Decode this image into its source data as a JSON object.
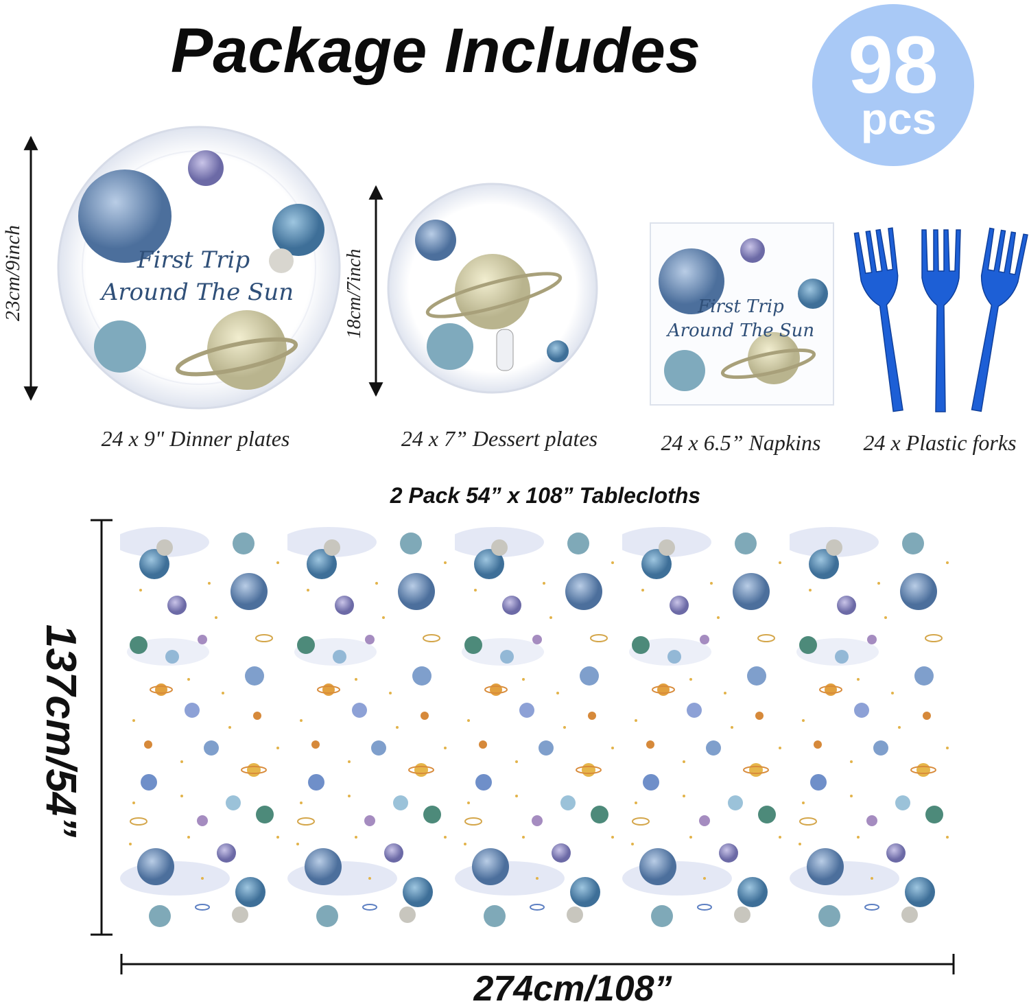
{
  "header": {
    "title": "Package Includes",
    "badge_count": "98",
    "badge_unit": "pcs"
  },
  "plate_text": [
    "First Trip",
    "Around The Sun"
  ],
  "items": [
    {
      "size": "23cm/9inch",
      "caption": "24 x 9\" Dinner plates"
    },
    {
      "size": "18cm/7inch",
      "caption": "24 x 7” Dessert plates"
    },
    {
      "caption": "24 x 6.5” Napkins"
    },
    {
      "caption": "24 x Plastic forks"
    }
  ],
  "tablecloth": {
    "title": "2 Pack 54” x 108” Tablecloths",
    "height": "137cm/54”",
    "width": "274cm/108”"
  }
}
